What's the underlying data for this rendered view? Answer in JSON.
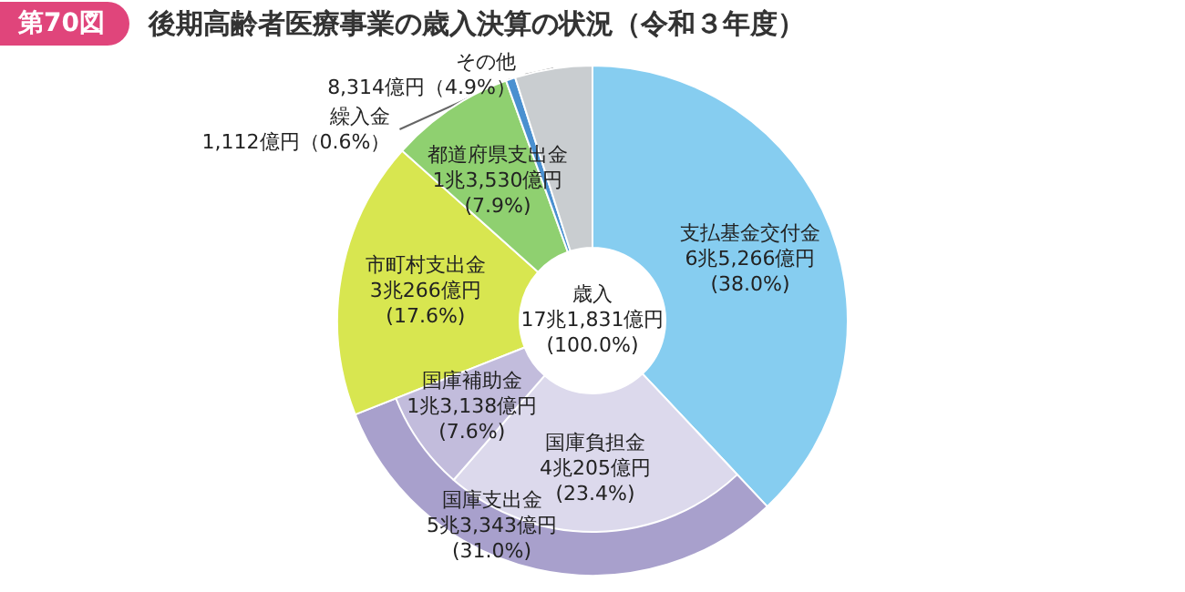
{
  "chart_data": [
    {
      "type": "donut",
      "title": "後期高齢者医療事業の歳入決算の状況（令和３年度）",
      "categories": [
        "支払基金交付金",
        "国庫支出金",
        "市町村支出金",
        "都道府県支出金",
        "繰入金",
        "その他"
      ],
      "values": [
        38.0,
        31.0,
        17.6,
        7.9,
        0.6,
        4.9
      ],
      "colors": [
        "#86cdf0",
        "#a8a0cc",
        "#d8e650",
        "#8fd070",
        "#4a90d0",
        "#c9cdd0"
      ],
      "value_labels": [
        "6兆5,266億円\n(38.0%)",
        "5兆3,343億円\n(31.0%)",
        "3兆266億円\n(17.6%)",
        "1兆3,530億円\n(7.9%)",
        "1,112億円（0.6%）",
        "8,314億円（4.9%）"
      ],
      "annotations": [
        "第70図",
        "歳入\n17兆1,831億円\n(100.0%)"
      ]
    },
    {
      "type": "donut",
      "categories": [
        "国庫負担金",
        "国庫補助金"
      ],
      "values": [
        23.4,
        7.6
      ],
      "colors": [
        "#dcd9ec",
        "#c2bcdc"
      ],
      "value_labels": [
        "4兆205億円\n(23.4%)",
        "1兆3,138億円\n(7.6%)"
      ]
    }
  ]
}
